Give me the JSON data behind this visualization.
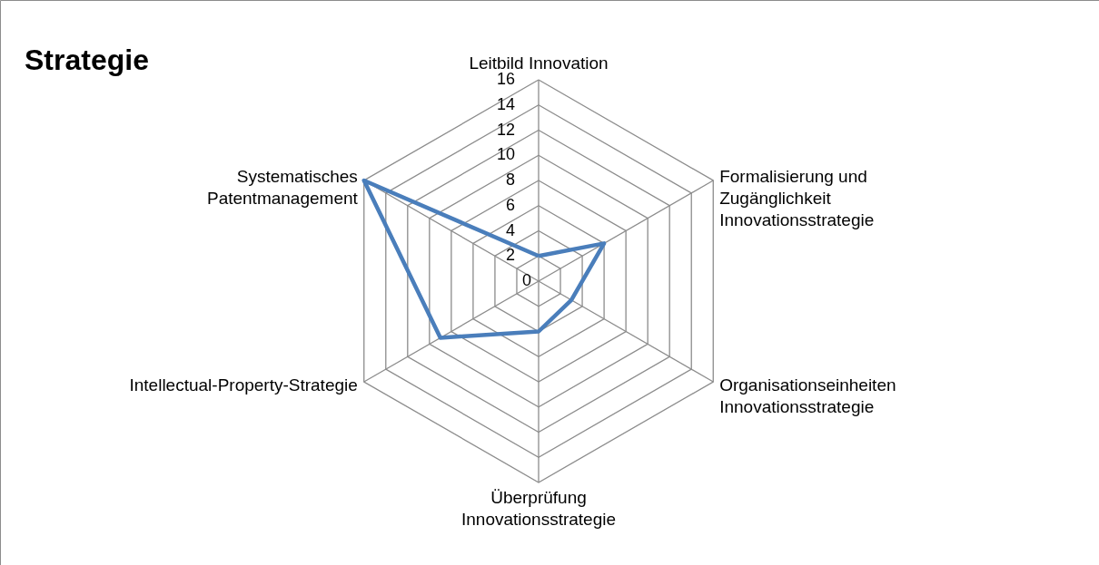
{
  "chart_data": {
    "type": "radar",
    "title": "Strategie",
    "categories": [
      "Leitbild Innovation",
      "Formalisierung und Zugänglichkeit Innovationsstrategie",
      "Organisationseinheiten Innovationsstrategie",
      "Überprüfung Innovationsstrategie",
      "Intellectual-Property-Strategie",
      "Systematisches Patentmanagement"
    ],
    "series": [
      {
        "color": "#4a7ebb",
        "values": [
          2,
          6,
          3,
          4,
          9,
          16
        ]
      }
    ],
    "ylim": [
      0,
      16
    ],
    "yticks": [
      0,
      2,
      4,
      6,
      8,
      10,
      12,
      14,
      16
    ],
    "grid": true
  }
}
